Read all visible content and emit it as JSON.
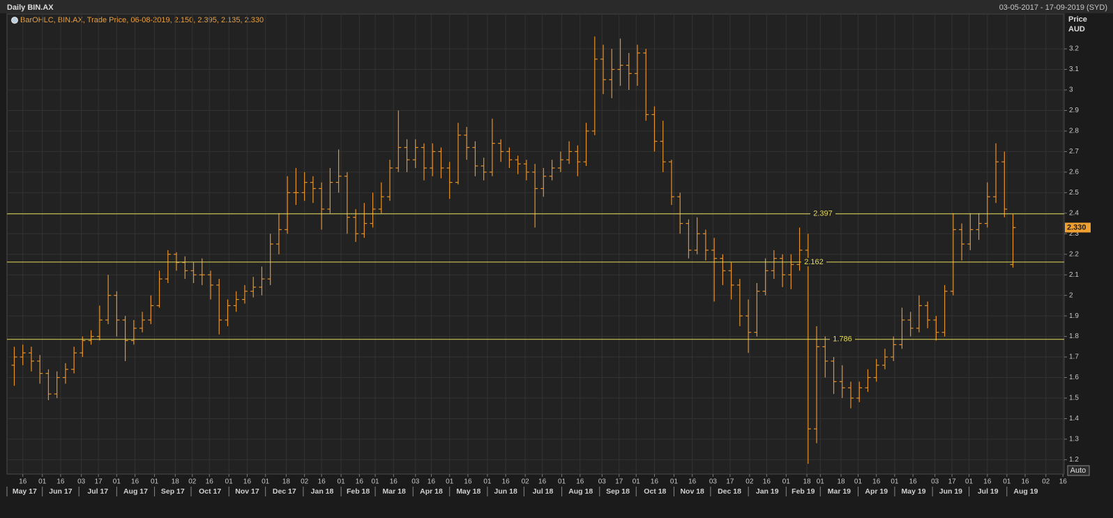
{
  "chart_data": {
    "type": "ohlc",
    "title": "Daily BIN.AX",
    "subtitle": "03-05-2017 - 17-09-2019 (SYD)",
    "legend": "BarOHLC, BIN.AX, Trade Price, 06-08-2019, 2.150, 2.395, 2.135, 2.330",
    "ylabel": "Price",
    "yunit": "AUD",
    "color": "#e8922a",
    "line_color": "#e6dc5a",
    "grid": true,
    "xlim": [
      "2017-05-03",
      "2019-09-17"
    ],
    "ylim": [
      1.13,
      3.37
    ],
    "yticks": [
      1.2,
      1.3,
      1.4,
      1.5,
      1.6,
      1.7,
      1.8,
      1.9,
      2,
      2.1,
      2.2,
      2.3,
      2.4,
      2.5,
      2.6,
      2.7,
      2.8,
      2.9,
      3,
      3.1,
      3.2
    ],
    "x": [
      "2017-05-09",
      "2017-05-16",
      "2017-05-23",
      "2017-05-30",
      "2017-06-06",
      "2017-06-13",
      "2017-06-20",
      "2017-06-27",
      "2017-07-04",
      "2017-07-11",
      "2017-07-18",
      "2017-07-25",
      "2017-08-01",
      "2017-08-08",
      "2017-08-15",
      "2017-08-22",
      "2017-08-29",
      "2017-09-05",
      "2017-09-12",
      "2017-09-19",
      "2017-09-26",
      "2017-10-03",
      "2017-10-10",
      "2017-10-17",
      "2017-10-24",
      "2017-10-31",
      "2017-11-07",
      "2017-11-14",
      "2017-11-21",
      "2017-11-28",
      "2017-12-05",
      "2017-12-12",
      "2017-12-19",
      "2017-12-26",
      "2018-01-02",
      "2018-01-09",
      "2018-01-16",
      "2018-01-23",
      "2018-01-30",
      "2018-02-06",
      "2018-02-13",
      "2018-02-20",
      "2018-02-27",
      "2018-03-06",
      "2018-03-13",
      "2018-03-20",
      "2018-03-27",
      "2018-04-03",
      "2018-04-10",
      "2018-04-17",
      "2018-04-24",
      "2018-05-01",
      "2018-05-08",
      "2018-05-15",
      "2018-05-22",
      "2018-05-29",
      "2018-06-05",
      "2018-06-12",
      "2018-06-19",
      "2018-06-26",
      "2018-07-03",
      "2018-07-10",
      "2018-07-17",
      "2018-07-24",
      "2018-07-31",
      "2018-08-07",
      "2018-08-14",
      "2018-08-21",
      "2018-08-28",
      "2018-09-04",
      "2018-09-11",
      "2018-09-18",
      "2018-09-25",
      "2018-10-02",
      "2018-10-09",
      "2018-10-16",
      "2018-10-23",
      "2018-10-30",
      "2018-11-06",
      "2018-11-13",
      "2018-11-20",
      "2018-11-27",
      "2018-12-04",
      "2018-12-11",
      "2018-12-18",
      "2018-12-25",
      "2019-01-01",
      "2019-01-08",
      "2019-01-15",
      "2019-01-22",
      "2019-01-29",
      "2019-02-05",
      "2019-02-12",
      "2019-02-19",
      "2019-02-26",
      "2019-03-05",
      "2019-03-12",
      "2019-03-19",
      "2019-03-26",
      "2019-04-02",
      "2019-04-09",
      "2019-04-16",
      "2019-04-23",
      "2019-04-30",
      "2019-05-07",
      "2019-05-14",
      "2019-05-21",
      "2019-05-28",
      "2019-06-04",
      "2019-06-11",
      "2019-06-18",
      "2019-06-25",
      "2019-07-02",
      "2019-07-09",
      "2019-07-16",
      "2019-07-23",
      "2019-07-30",
      "2019-08-06"
    ],
    "open": [
      1.66,
      1.7,
      1.72,
      1.68,
      1.62,
      1.52,
      1.6,
      1.64,
      1.72,
      1.78,
      1.8,
      1.88,
      2.0,
      1.88,
      1.78,
      1.84,
      1.88,
      1.95,
      2.08,
      2.2,
      2.16,
      2.12,
      2.1,
      2.1,
      2.05,
      1.88,
      1.95,
      1.98,
      2.02,
      2.04,
      2.08,
      2.25,
      2.32,
      2.5,
      2.5,
      2.55,
      2.52,
      2.42,
      2.55,
      2.58,
      2.38,
      2.3,
      2.35,
      2.42,
      2.48,
      2.62,
      2.72,
      2.66,
      2.72,
      2.62,
      2.7,
      2.62,
      2.55,
      2.78,
      2.72,
      2.63,
      2.6,
      2.74,
      2.7,
      2.66,
      2.64,
      2.6,
      2.52,
      2.58,
      2.62,
      2.66,
      2.7,
      2.65,
      2.8,
      3.15,
      3.05,
      3.1,
      3.12,
      3.08,
      3.18,
      2.88,
      2.75,
      2.65,
      2.48,
      2.35,
      2.22,
      2.3,
      2.22,
      2.18,
      2.12,
      2.05,
      1.9,
      1.82,
      2.02,
      2.12,
      2.18,
      2.1,
      2.15,
      2.22,
      1.35,
      1.75,
      1.68,
      1.58,
      1.55,
      1.5,
      1.55,
      1.6,
      1.66,
      1.7,
      1.76,
      1.88,
      1.84,
      1.95,
      1.88,
      1.82,
      2.02,
      2.32,
      2.25,
      2.32,
      2.35,
      2.48,
      2.65,
      2.15
    ],
    "high": [
      1.75,
      1.76,
      1.75,
      1.71,
      1.64,
      1.63,
      1.67,
      1.75,
      1.8,
      1.83,
      1.95,
      2.1,
      2.02,
      1.9,
      1.88,
      1.92,
      2.0,
      2.12,
      2.22,
      2.21,
      2.19,
      2.16,
      2.18,
      2.12,
      2.08,
      1.98,
      2.02,
      2.05,
      2.09,
      2.14,
      2.3,
      2.4,
      2.58,
      2.62,
      2.6,
      2.58,
      2.55,
      2.62,
      2.71,
      2.6,
      2.42,
      2.45,
      2.5,
      2.55,
      2.66,
      2.9,
      2.76,
      2.76,
      2.74,
      2.74,
      2.72,
      2.65,
      2.84,
      2.82,
      2.75,
      2.67,
      2.86,
      2.76,
      2.72,
      2.68,
      2.66,
      2.64,
      2.62,
      2.66,
      2.7,
      2.75,
      2.73,
      2.84,
      3.26,
      3.22,
      3.2,
      3.25,
      3.18,
      3.22,
      3.2,
      2.92,
      2.85,
      2.66,
      2.5,
      2.37,
      2.38,
      2.32,
      2.28,
      2.2,
      2.16,
      2.08,
      1.98,
      2.06,
      2.18,
      2.22,
      2.2,
      2.2,
      2.33,
      2.3,
      1.85,
      1.8,
      1.7,
      1.66,
      1.58,
      1.58,
      1.64,
      1.69,
      1.74,
      1.8,
      1.94,
      1.92,
      2.0,
      1.97,
      1.9,
      2.05,
      2.4,
      2.35,
      2.4,
      2.4,
      2.55,
      2.74,
      2.7,
      2.395
    ],
    "low": [
      1.56,
      1.66,
      1.63,
      1.57,
      1.49,
      1.5,
      1.57,
      1.62,
      1.7,
      1.76,
      1.78,
      1.86,
      1.8,
      1.68,
      1.76,
      1.82,
      1.86,
      1.94,
      2.06,
      2.12,
      2.08,
      2.06,
      2.05,
      1.98,
      1.81,
      1.85,
      1.92,
      1.96,
      1.99,
      2.0,
      2.05,
      2.2,
      2.3,
      2.44,
      2.46,
      2.45,
      2.32,
      2.4,
      2.5,
      2.3,
      2.26,
      2.28,
      2.33,
      2.4,
      2.46,
      2.6,
      2.6,
      2.62,
      2.56,
      2.58,
      2.57,
      2.47,
      2.54,
      2.66,
      2.58,
      2.56,
      2.58,
      2.65,
      2.62,
      2.59,
      2.56,
      2.33,
      2.48,
      2.56,
      2.6,
      2.64,
      2.58,
      2.63,
      2.78,
      2.98,
      2.96,
      3.02,
      3.0,
      3.02,
      2.85,
      2.7,
      2.6,
      2.44,
      2.3,
      2.18,
      2.2,
      2.17,
      1.97,
      2.05,
      1.98,
      1.85,
      1.72,
      1.8,
      2.0,
      2.08,
      2.04,
      2.03,
      2.12,
      1.18,
      1.28,
      1.6,
      1.52,
      1.5,
      1.45,
      1.48,
      1.53,
      1.58,
      1.64,
      1.68,
      1.74,
      1.8,
      1.82,
      1.84,
      1.78,
      1.8,
      2.0,
      2.17,
      2.22,
      2.27,
      2.33,
      2.45,
      2.38,
      2.135
    ],
    "close": [
      1.7,
      1.72,
      1.68,
      1.62,
      1.52,
      1.6,
      1.64,
      1.72,
      1.78,
      1.8,
      1.88,
      2.0,
      1.88,
      1.78,
      1.84,
      1.88,
      1.95,
      2.08,
      2.2,
      2.16,
      2.12,
      2.1,
      2.1,
      2.05,
      1.88,
      1.95,
      1.98,
      2.02,
      2.04,
      2.08,
      2.25,
      2.32,
      2.5,
      2.5,
      2.55,
      2.52,
      2.42,
      2.55,
      2.58,
      2.38,
      2.3,
      2.35,
      2.42,
      2.48,
      2.62,
      2.72,
      2.66,
      2.72,
      2.62,
      2.7,
      2.62,
      2.55,
      2.78,
      2.72,
      2.63,
      2.6,
      2.74,
      2.7,
      2.66,
      2.64,
      2.6,
      2.52,
      2.58,
      2.62,
      2.66,
      2.7,
      2.65,
      2.8,
      3.15,
      3.05,
      3.1,
      3.12,
      3.08,
      3.18,
      2.88,
      2.75,
      2.65,
      2.48,
      2.35,
      2.22,
      2.3,
      2.22,
      2.18,
      2.12,
      2.05,
      1.9,
      1.82,
      2.02,
      2.12,
      2.18,
      2.1,
      2.15,
      2.22,
      1.35,
      1.75,
      1.68,
      1.58,
      1.55,
      1.5,
      1.55,
      1.6,
      1.66,
      1.7,
      1.76,
      1.88,
      1.84,
      1.95,
      1.88,
      1.82,
      2.02,
      2.32,
      2.25,
      2.32,
      2.35,
      2.48,
      2.65,
      2.42,
      2.33
    ],
    "hlines": [
      2.397,
      2.162,
      1.786
    ],
    "last_price": {
      "value": 2.33,
      "label": "2.330"
    },
    "xticks": [
      {
        "value": "2017-05-16",
        "label": "16"
      },
      {
        "value": "2017-06-01",
        "label": "01"
      },
      {
        "value": "2017-06-16",
        "label": "16"
      },
      {
        "value": "2017-07-03",
        "label": "03"
      },
      {
        "value": "2017-07-17",
        "label": "17"
      },
      {
        "value": "2017-08-01",
        "label": "01"
      },
      {
        "value": "2017-08-16",
        "label": "16"
      },
      {
        "value": "2017-09-01",
        "label": "01"
      },
      {
        "value": "2017-09-18",
        "label": "18"
      },
      {
        "value": "2017-10-02",
        "label": "02"
      },
      {
        "value": "2017-10-16",
        "label": "16"
      },
      {
        "value": "2017-11-01",
        "label": "01"
      },
      {
        "value": "2017-11-16",
        "label": "16"
      },
      {
        "value": "2017-12-01",
        "label": "01"
      },
      {
        "value": "2017-12-18",
        "label": "18"
      },
      {
        "value": "2018-01-02",
        "label": "02"
      },
      {
        "value": "2018-01-16",
        "label": "16"
      },
      {
        "value": "2018-02-01",
        "label": "01"
      },
      {
        "value": "2018-02-16",
        "label": "16"
      },
      {
        "value": "2018-03-01",
        "label": "01"
      },
      {
        "value": "2018-03-16",
        "label": "16"
      },
      {
        "value": "2018-04-03",
        "label": "03"
      },
      {
        "value": "2018-04-16",
        "label": "16"
      },
      {
        "value": "2018-05-01",
        "label": "01"
      },
      {
        "value": "2018-05-16",
        "label": "16"
      },
      {
        "value": "2018-06-01",
        "label": "01"
      },
      {
        "value": "2018-06-16",
        "label": "16"
      },
      {
        "value": "2018-07-02",
        "label": "02"
      },
      {
        "value": "2018-07-16",
        "label": "16"
      },
      {
        "value": "2018-08-01",
        "label": "01"
      },
      {
        "value": "2018-08-16",
        "label": "16"
      },
      {
        "value": "2018-09-03",
        "label": "03"
      },
      {
        "value": "2018-09-17",
        "label": "17"
      },
      {
        "value": "2018-10-01",
        "label": "01"
      },
      {
        "value": "2018-10-16",
        "label": "16"
      },
      {
        "value": "2018-11-01",
        "label": "01"
      },
      {
        "value": "2018-11-16",
        "label": "16"
      },
      {
        "value": "2018-12-03",
        "label": "03"
      },
      {
        "value": "2018-12-17",
        "label": "17"
      },
      {
        "value": "2019-01-02",
        "label": "02"
      },
      {
        "value": "2019-01-16",
        "label": "16"
      },
      {
        "value": "2019-02-01",
        "label": "01"
      },
      {
        "value": "2019-02-18",
        "label": "18"
      },
      {
        "value": "2019-03-01",
        "label": "01"
      },
      {
        "value": "2019-03-18",
        "label": "18"
      },
      {
        "value": "2019-04-01",
        "label": "01"
      },
      {
        "value": "2019-04-16",
        "label": "16"
      },
      {
        "value": "2019-05-01",
        "label": "01"
      },
      {
        "value": "2019-05-16",
        "label": "16"
      },
      {
        "value": "2019-06-03",
        "label": "03"
      },
      {
        "value": "2019-06-17",
        "label": "17"
      },
      {
        "value": "2019-07-01",
        "label": "01"
      },
      {
        "value": "2019-07-16",
        "label": "16"
      },
      {
        "value": "2019-08-01",
        "label": "01"
      },
      {
        "value": "2019-08-16",
        "label": "16"
      },
      {
        "value": "2019-09-02",
        "label": "02"
      },
      {
        "value": "2019-09-16",
        "label": "16"
      }
    ],
    "month_ticks": [
      {
        "value": "2017-05",
        "label": "May 17"
      },
      {
        "value": "2017-06",
        "label": "Jun 17"
      },
      {
        "value": "2017-07",
        "label": "Jul 17"
      },
      {
        "value": "2017-08",
        "label": "Aug 17"
      },
      {
        "value": "2017-09",
        "label": "Sep 17"
      },
      {
        "value": "2017-10",
        "label": "Oct 17"
      },
      {
        "value": "2017-11",
        "label": "Nov 17"
      },
      {
        "value": "2017-12",
        "label": "Dec 17"
      },
      {
        "value": "2018-01",
        "label": "Jan 18"
      },
      {
        "value": "2018-02",
        "label": "Feb 18"
      },
      {
        "value": "2018-03",
        "label": "Mar 18"
      },
      {
        "value": "2018-04",
        "label": "Apr 18"
      },
      {
        "value": "2018-05",
        "label": "May 18"
      },
      {
        "value": "2018-06",
        "label": "Jun 18"
      },
      {
        "value": "2018-07",
        "label": "Jul 18"
      },
      {
        "value": "2018-08",
        "label": "Aug 18"
      },
      {
        "value": "2018-09",
        "label": "Sep 18"
      },
      {
        "value": "2018-10",
        "label": "Oct 18"
      },
      {
        "value": "2018-11",
        "label": "Nov 18"
      },
      {
        "value": "2018-12",
        "label": "Dec 18"
      },
      {
        "value": "2019-01",
        "label": "Jan 19"
      },
      {
        "value": "2019-02",
        "label": "Feb 19"
      },
      {
        "value": "2019-03",
        "label": "Mar 19"
      },
      {
        "value": "2019-04",
        "label": "Apr 19"
      },
      {
        "value": "2019-05",
        "label": "May 19"
      },
      {
        "value": "2019-06",
        "label": "Jun 19"
      },
      {
        "value": "2019-07",
        "label": "Jul 19"
      },
      {
        "value": "2019-08",
        "label": "Aug 19"
      }
    ],
    "auto_button": "Auto"
  }
}
